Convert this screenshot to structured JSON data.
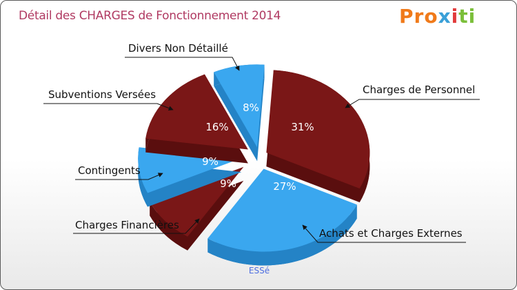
{
  "header": {
    "title": "Détail des CHARGES de Fonctionnement 2014",
    "logo": {
      "part1": "Pro",
      "part2": "x",
      "part3": "i",
      "part4": "ti"
    }
  },
  "footer": {
    "commune": "ESSé"
  },
  "colors": {
    "dark_red": "#7a1717",
    "blue": "#3aa7ef",
    "title": "#b03a62"
  },
  "chart_data": {
    "type": "pie",
    "title": "Détail des CHARGES de Fonctionnement 2014",
    "slices": [
      {
        "label": "Charges de Personnel",
        "value": 31,
        "display": "31%",
        "color": "dark_red"
      },
      {
        "label": "Achats et Charges Externes",
        "value": 27,
        "display": "27%",
        "color": "blue"
      },
      {
        "label": "Charges Financières",
        "value": 9,
        "display": "9%",
        "color": "dark_red"
      },
      {
        "label": "Contingents",
        "value": 9,
        "display": "9%",
        "color": "blue"
      },
      {
        "label": "Subventions Versées",
        "value": 16,
        "display": "16%",
        "color": "dark_red"
      },
      {
        "label": "Divers Non Détaillé",
        "value": 8,
        "display": "8%",
        "color": "blue"
      }
    ]
  }
}
